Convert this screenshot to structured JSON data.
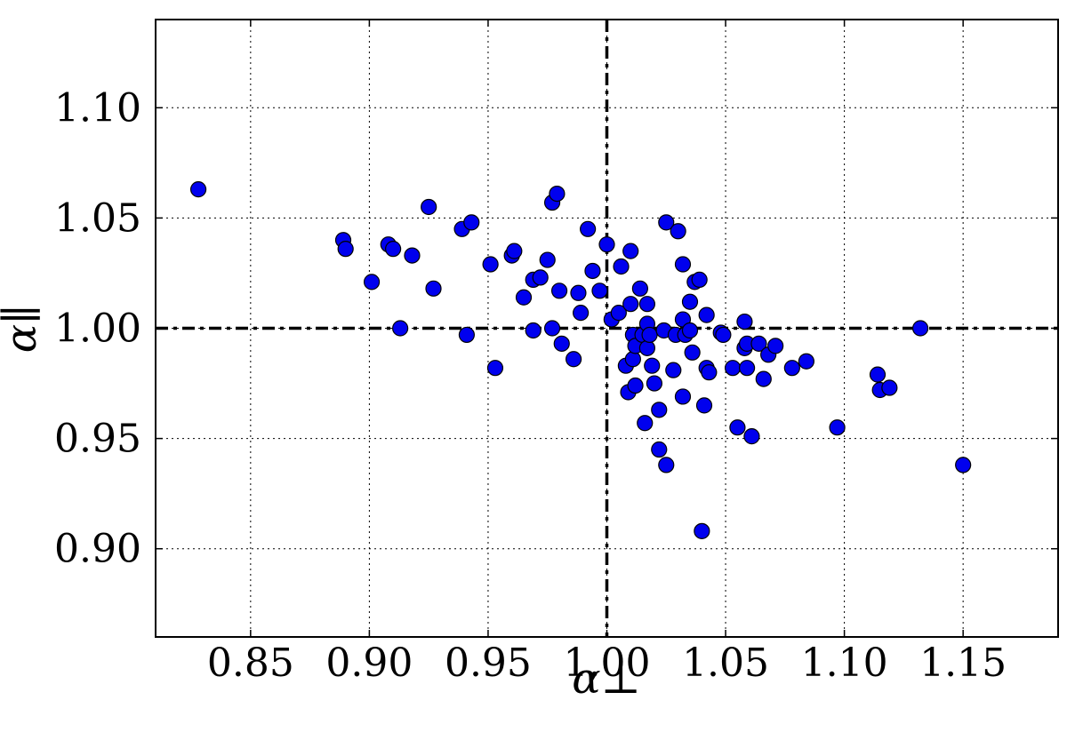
{
  "chart_data": {
    "type": "scatter",
    "title": "",
    "xlabel": "α⊥",
    "ylabel": "α∥",
    "xlim": [
      0.81,
      1.19
    ],
    "ylim": [
      0.86,
      1.14
    ],
    "x_ticks": [
      "0.85",
      "0.90",
      "0.95",
      "1.00",
      "1.05",
      "1.10",
      "1.15"
    ],
    "y_ticks": [
      "0.90",
      "0.95",
      "1.00",
      "1.05",
      "1.10"
    ],
    "grid": true,
    "reference_lines": {
      "x": 1.0,
      "y": 1.0
    },
    "marker_color": "#0000ee",
    "marker_edge_color": "#000000",
    "points": [
      [
        0.828,
        1.063
      ],
      [
        0.889,
        1.04
      ],
      [
        0.89,
        1.036
      ],
      [
        0.901,
        1.021
      ],
      [
        0.908,
        1.038
      ],
      [
        0.91,
        1.036
      ],
      [
        0.913,
        1.0
      ],
      [
        0.918,
        1.033
      ],
      [
        0.925,
        1.055
      ],
      [
        0.927,
        1.018
      ],
      [
        0.939,
        1.045
      ],
      [
        0.941,
        0.997
      ],
      [
        0.943,
        1.048
      ],
      [
        0.951,
        1.029
      ],
      [
        0.953,
        0.982
      ],
      [
        0.96,
        1.033
      ],
      [
        0.961,
        1.035
      ],
      [
        0.965,
        1.014
      ],
      [
        0.969,
        1.022
      ],
      [
        0.969,
        0.999
      ],
      [
        0.972,
        1.023
      ],
      [
        0.975,
        1.031
      ],
      [
        0.977,
        1.057
      ],
      [
        0.977,
        1.0
      ],
      [
        0.979,
        1.061
      ],
      [
        0.98,
        1.017
      ],
      [
        0.981,
        0.993
      ],
      [
        0.986,
        0.986
      ],
      [
        0.988,
        1.016
      ],
      [
        0.989,
        1.007
      ],
      [
        0.992,
        1.045
      ],
      [
        0.994,
        1.026
      ],
      [
        0.997,
        1.017
      ],
      [
        1.0,
        1.038
      ],
      [
        1.002,
        1.004
      ],
      [
        1.005,
        1.007
      ],
      [
        1.006,
        1.028
      ],
      [
        1.008,
        0.983
      ],
      [
        1.009,
        0.971
      ],
      [
        1.01,
        1.011
      ],
      [
        1.01,
        1.035
      ],
      [
        1.011,
        0.986
      ],
      [
        1.011,
        0.997
      ],
      [
        1.012,
        0.974
      ],
      [
        1.012,
        0.992
      ],
      [
        1.014,
        1.018
      ],
      [
        1.015,
        0.997
      ],
      [
        1.016,
        0.957
      ],
      [
        1.017,
        1.011
      ],
      [
        1.017,
        1.002
      ],
      [
        1.017,
        0.991
      ],
      [
        1.018,
        0.997
      ],
      [
        1.019,
        0.983
      ],
      [
        1.02,
        0.975
      ],
      [
        1.022,
        0.945
      ],
      [
        1.022,
        0.963
      ],
      [
        1.024,
        0.999
      ],
      [
        1.025,
        1.048
      ],
      [
        1.025,
        0.938
      ],
      [
        1.028,
        0.981
      ],
      [
        1.029,
        0.997
      ],
      [
        1.03,
        1.044
      ],
      [
        1.032,
        1.029
      ],
      [
        1.032,
        1.004
      ],
      [
        1.032,
        0.969
      ],
      [
        1.033,
        0.997
      ],
      [
        1.035,
        1.012
      ],
      [
        1.035,
        0.999
      ],
      [
        1.036,
        0.989
      ],
      [
        1.037,
        1.021
      ],
      [
        1.039,
        1.022
      ],
      [
        1.04,
        0.908
      ],
      [
        1.041,
        0.965
      ],
      [
        1.042,
        1.006
      ],
      [
        1.042,
        0.982
      ],
      [
        1.043,
        0.98
      ],
      [
        1.048,
        0.998
      ],
      [
        1.049,
        0.997
      ],
      [
        1.053,
        0.982
      ],
      [
        1.055,
        0.955
      ],
      [
        1.058,
        1.003
      ],
      [
        1.058,
        0.991
      ],
      [
        1.059,
        0.982
      ],
      [
        1.059,
        0.993
      ],
      [
        1.061,
        0.951
      ],
      [
        1.064,
        0.993
      ],
      [
        1.066,
        0.977
      ],
      [
        1.068,
        0.988
      ],
      [
        1.071,
        0.992
      ],
      [
        1.078,
        0.982
      ],
      [
        1.084,
        0.985
      ],
      [
        1.097,
        0.955
      ],
      [
        1.114,
        0.979
      ],
      [
        1.115,
        0.972
      ],
      [
        1.119,
        0.973
      ],
      [
        1.132,
        1.0
      ],
      [
        1.15,
        0.938
      ]
    ]
  }
}
